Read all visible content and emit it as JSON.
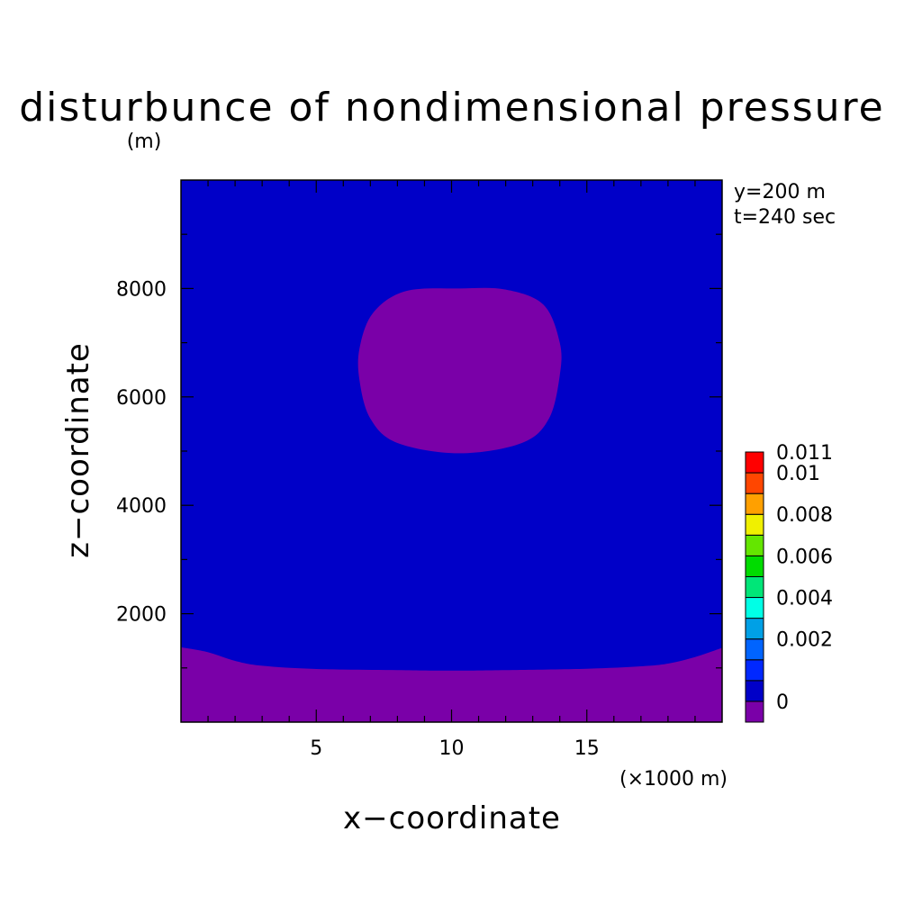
{
  "chart_data": {
    "type": "contour",
    "title": "disturbunce of nondimensional pressure",
    "units": "(m)",
    "xlabel": "x−coordinate",
    "ylabel": "z−coordinate",
    "x_unit": "(×1000 m)",
    "annotations": [
      "y=200 m",
      "t=240 sec"
    ],
    "xlim": [
      0,
      20
    ],
    "ylim": [
      0,
      10000
    ],
    "x_ticks": [
      5,
      10,
      15
    ],
    "y_ticks": [
      2000,
      4000,
      6000,
      8000
    ],
    "x_tick_labels": [
      "5",
      "10",
      "15"
    ],
    "y_tick_labels": [
      "2000",
      "4000",
      "6000",
      "8000"
    ],
    "x_minor_step": 1,
    "y_minor_step": 200,
    "grid": false,
    "colorbar": {
      "levels": [
        {
          "value": "< 0",
          "color": "#7a00a8"
        },
        {
          "value": "0",
          "color": "#0000c8"
        },
        {
          "value": "0.001",
          "color": "#0028ff"
        },
        {
          "value": "0.002",
          "color": "#0064ff"
        },
        {
          "value": "0.003",
          "color": "#00a0e6"
        },
        {
          "value": "0.004",
          "color": "#00ffe6"
        },
        {
          "value": "0.005",
          "color": "#00e678"
        },
        {
          "value": "0.006",
          "color": "#00dc00"
        },
        {
          "value": "0.007",
          "color": "#64e600"
        },
        {
          "value": "0.008",
          "color": "#f0f000"
        },
        {
          "value": "0.009",
          "color": "#ffa000"
        },
        {
          "value": "0.01",
          "color": "#ff4600"
        },
        {
          "value": "0.011",
          "color": "#ff0000"
        }
      ],
      "labels": [
        {
          "text": "0.011",
          "level": 13
        },
        {
          "text": "0.01",
          "level": 12
        },
        {
          "text": "0.008",
          "level": 10
        },
        {
          "text": "0.006",
          "level": 8
        },
        {
          "text": "0.004",
          "level": 6
        },
        {
          "text": "0.002",
          "level": 4
        },
        {
          "text": "0",
          "level": 1
        }
      ]
    },
    "regions": [
      {
        "name": "bubble-region",
        "level": "< 0",
        "color": "#7a00a8",
        "boundary": [
          [
            10.3,
            8000
          ],
          [
            12.0,
            7980
          ],
          [
            13.4,
            7700
          ],
          [
            14.0,
            7000
          ],
          [
            14.0,
            6400
          ],
          [
            13.6,
            5600
          ],
          [
            12.6,
            5150
          ],
          [
            10.3,
            4960
          ],
          [
            8.0,
            5150
          ],
          [
            7.0,
            5600
          ],
          [
            6.6,
            6300
          ],
          [
            6.6,
            6900
          ],
          [
            7.1,
            7550
          ],
          [
            8.3,
            7950
          ]
        ]
      },
      {
        "name": "bottom-layer-region",
        "level": "< 0",
        "color": "#7a00a8",
        "boundary": [
          [
            0,
            1380
          ],
          [
            1.0,
            1290
          ],
          [
            2.0,
            1130
          ],
          [
            3.0,
            1040
          ],
          [
            5.0,
            980
          ],
          [
            8.0,
            960
          ],
          [
            10.0,
            950
          ],
          [
            12.0,
            960
          ],
          [
            15.0,
            985
          ],
          [
            17.0,
            1030
          ],
          [
            18.0,
            1080
          ],
          [
            19.0,
            1200
          ],
          [
            20.0,
            1370
          ],
          [
            20.0,
            0
          ],
          [
            0,
            0
          ]
        ]
      }
    ],
    "background_level": "0",
    "background_color": "#0000c8"
  }
}
